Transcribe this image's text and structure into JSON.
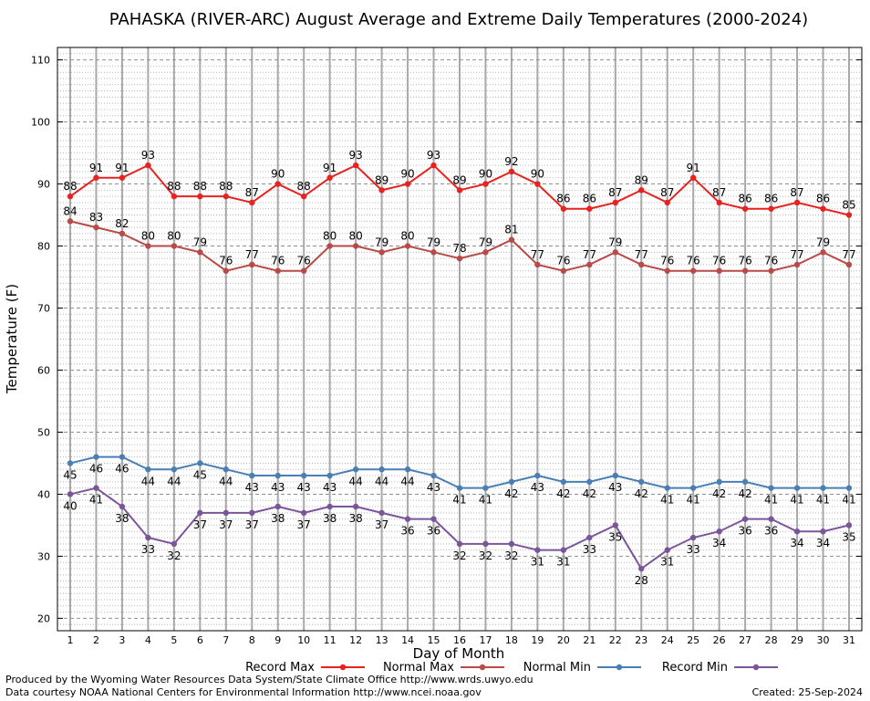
{
  "chart_data": {
    "type": "line",
    "title": "PAHASKA (RIVER-ARC) August Average and Extreme Daily Temperatures (2000-2024)",
    "xlabel": "Day of Month",
    "ylabel": "Temperature (F)",
    "x": [
      1,
      2,
      3,
      4,
      5,
      6,
      7,
      8,
      9,
      10,
      11,
      12,
      13,
      14,
      15,
      16,
      17,
      18,
      19,
      20,
      21,
      22,
      23,
      24,
      25,
      26,
      27,
      28,
      29,
      30,
      31
    ],
    "xlim": [
      1,
      31
    ],
    "ylim": [
      18,
      112
    ],
    "yticks": [
      20,
      30,
      40,
      50,
      60,
      70,
      80,
      90,
      100,
      110
    ],
    "grid": true,
    "legend_position": "bottom",
    "series": [
      {
        "name": "Record Max",
        "color": "#e8221f",
        "values": [
          88,
          91,
          91,
          93,
          88,
          88,
          88,
          87,
          90,
          88,
          91,
          93,
          89,
          90,
          93,
          89,
          90,
          92,
          90,
          86,
          86,
          87,
          89,
          87,
          91,
          87,
          86,
          86,
          87,
          86,
          85
        ]
      },
      {
        "name": "Normal Max",
        "color": "#b94a48",
        "values": [
          84,
          83,
          82,
          80,
          80,
          79,
          76,
          77,
          76,
          76,
          80,
          80,
          79,
          80,
          79,
          78,
          79,
          81,
          77,
          76,
          77,
          79,
          77,
          76,
          76,
          76,
          76,
          76,
          77,
          79,
          77
        ]
      },
      {
        "name": "Normal Min",
        "color": "#4a7fb5",
        "values": [
          45,
          46,
          46,
          44,
          44,
          45,
          44,
          43,
          43,
          43,
          43,
          44,
          44,
          44,
          43,
          41,
          41,
          42,
          43,
          42,
          42,
          43,
          42,
          41,
          41,
          42,
          42,
          41,
          41,
          41,
          41
        ]
      },
      {
        "name": "Record Min",
        "color": "#7b559a",
        "values": [
          40,
          41,
          38,
          33,
          32,
          37,
          37,
          37,
          38,
          37,
          38,
          38,
          37,
          36,
          36,
          32,
          32,
          32,
          31,
          31,
          33,
          35,
          28,
          31,
          33,
          34,
          36,
          36,
          34,
          34,
          35
        ]
      }
    ]
  },
  "footer": {
    "produced_by": "Produced by the Wyoming Water Resources Data System/State Climate Office http://www.wrds.uwyo.edu",
    "data_courtesy": "Data courtesy NOAA National Centers for Environmental Information http://www.ncei.noaa.gov",
    "created": "Created:  25-Sep-2024"
  }
}
